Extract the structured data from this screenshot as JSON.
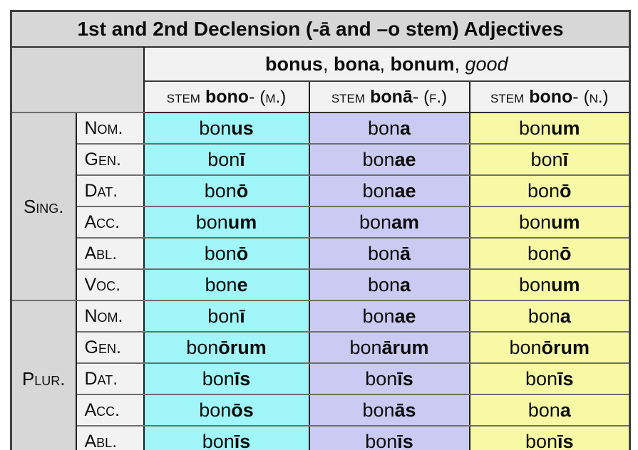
{
  "title": "1st and 2nd Declension (-ā and –o stem) Adjectives",
  "lexeme_header": {
    "parts": [
      {
        "text": "bonus",
        "style": "bold"
      },
      {
        "text": ", ",
        "style": "plain"
      },
      {
        "text": "bona",
        "style": "bold"
      },
      {
        "text": ", ",
        "style": "plain"
      },
      {
        "text": "bonum",
        "style": "bold"
      },
      {
        "text": ", ",
        "style": "plain"
      },
      {
        "text": "good",
        "style": "italic"
      }
    ]
  },
  "stem_headers": [
    {
      "prefix": "stem",
      "stem": "bono",
      "suffix": "-",
      "gender": "(m.)"
    },
    {
      "prefix": "stem",
      "stem": "bonā",
      "suffix": "-",
      "gender": "(f.)"
    },
    {
      "prefix": "stem",
      "stem": "bono",
      "suffix": "-",
      "gender": "(n.)"
    }
  ],
  "genders": [
    "masculine",
    "feminine",
    "neuter"
  ],
  "colors": {
    "masculine": "#a0f6f8",
    "feminine": "#cacaf3",
    "neuter": "#f7f9a5",
    "header_gray": "#d7d7d7",
    "light_gray": "#f2f2f2"
  },
  "groups": [
    {
      "label": "Sing.",
      "rows": [
        {
          "case": "Nom.",
          "forms": [
            {
              "stem": "bon",
              "ending": "us"
            },
            {
              "stem": "bon",
              "ending": "a"
            },
            {
              "stem": "bon",
              "ending": "um"
            }
          ]
        },
        {
          "case": "Gen.",
          "forms": [
            {
              "stem": "bon",
              "ending": "ī"
            },
            {
              "stem": "bon",
              "ending": "ae"
            },
            {
              "stem": "bon",
              "ending": "ī"
            }
          ]
        },
        {
          "case": "Dat.",
          "forms": [
            {
              "stem": "bon",
              "ending": "ō"
            },
            {
              "stem": "bon",
              "ending": "ae"
            },
            {
              "stem": "bon",
              "ending": "ō"
            }
          ]
        },
        {
          "case": "Acc.",
          "forms": [
            {
              "stem": "bon",
              "ending": "um"
            },
            {
              "stem": "bon",
              "ending": "am"
            },
            {
              "stem": "bon",
              "ending": "um"
            }
          ]
        },
        {
          "case": "Abl.",
          "forms": [
            {
              "stem": "bon",
              "ending": "ō"
            },
            {
              "stem": "bon",
              "ending": "ā"
            },
            {
              "stem": "bon",
              "ending": "ō"
            }
          ]
        },
        {
          "case": "Voc.",
          "forms": [
            {
              "stem": "bon",
              "ending": "e"
            },
            {
              "stem": "bon",
              "ending": "a"
            },
            {
              "stem": "bon",
              "ending": "um"
            }
          ]
        }
      ]
    },
    {
      "label": "Plur.",
      "rows": [
        {
          "case": "Nom.",
          "forms": [
            {
              "stem": "bon",
              "ending": "ī"
            },
            {
              "stem": "bon",
              "ending": "ae"
            },
            {
              "stem": "bon",
              "ending": "a"
            }
          ]
        },
        {
          "case": "Gen.",
          "forms": [
            {
              "stem": "bon",
              "ending": "ōrum"
            },
            {
              "stem": "bon",
              "ending": "ārum"
            },
            {
              "stem": "bon",
              "ending": "ōrum"
            }
          ]
        },
        {
          "case": "Dat.",
          "forms": [
            {
              "stem": "bon",
              "ending": "īs"
            },
            {
              "stem": "bon",
              "ending": "īs"
            },
            {
              "stem": "bon",
              "ending": "īs"
            }
          ]
        },
        {
          "case": "Acc.",
          "forms": [
            {
              "stem": "bon",
              "ending": "ōs"
            },
            {
              "stem": "bon",
              "ending": "ās"
            },
            {
              "stem": "bon",
              "ending": "a"
            }
          ]
        },
        {
          "case": "Abl.",
          "forms": [
            {
              "stem": "bon",
              "ending": "īs"
            },
            {
              "stem": "bon",
              "ending": "īs"
            },
            {
              "stem": "bon",
              "ending": "īs"
            }
          ]
        }
      ]
    }
  ]
}
